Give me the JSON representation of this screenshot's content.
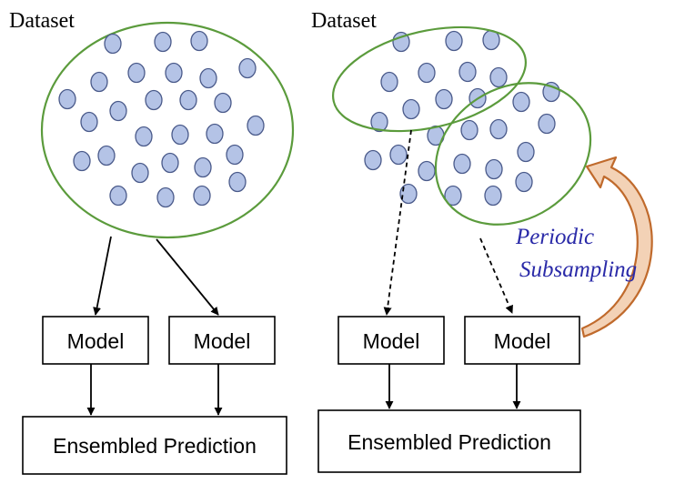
{
  "left": {
    "dataset_label": "Dataset",
    "model_labels": [
      "Model",
      "Model"
    ],
    "ensemble_label": "Ensembled Prediction"
  },
  "right": {
    "dataset_label": "Dataset",
    "model_labels": [
      "Model",
      "Model"
    ],
    "ensemble_label": "Ensembled Prediction",
    "annotation_lines": [
      "Periodic",
      "Subsampling"
    ]
  },
  "colors": {
    "point_fill": "#b4c3e6",
    "point_stroke": "#4a5a8a",
    "subset_ellipse": "#5b9b3c",
    "annotation_text": "#2a2aa8",
    "feedback_arrow": "#c06a2c",
    "feedback_arrow_fill": "#f3d2b6"
  }
}
